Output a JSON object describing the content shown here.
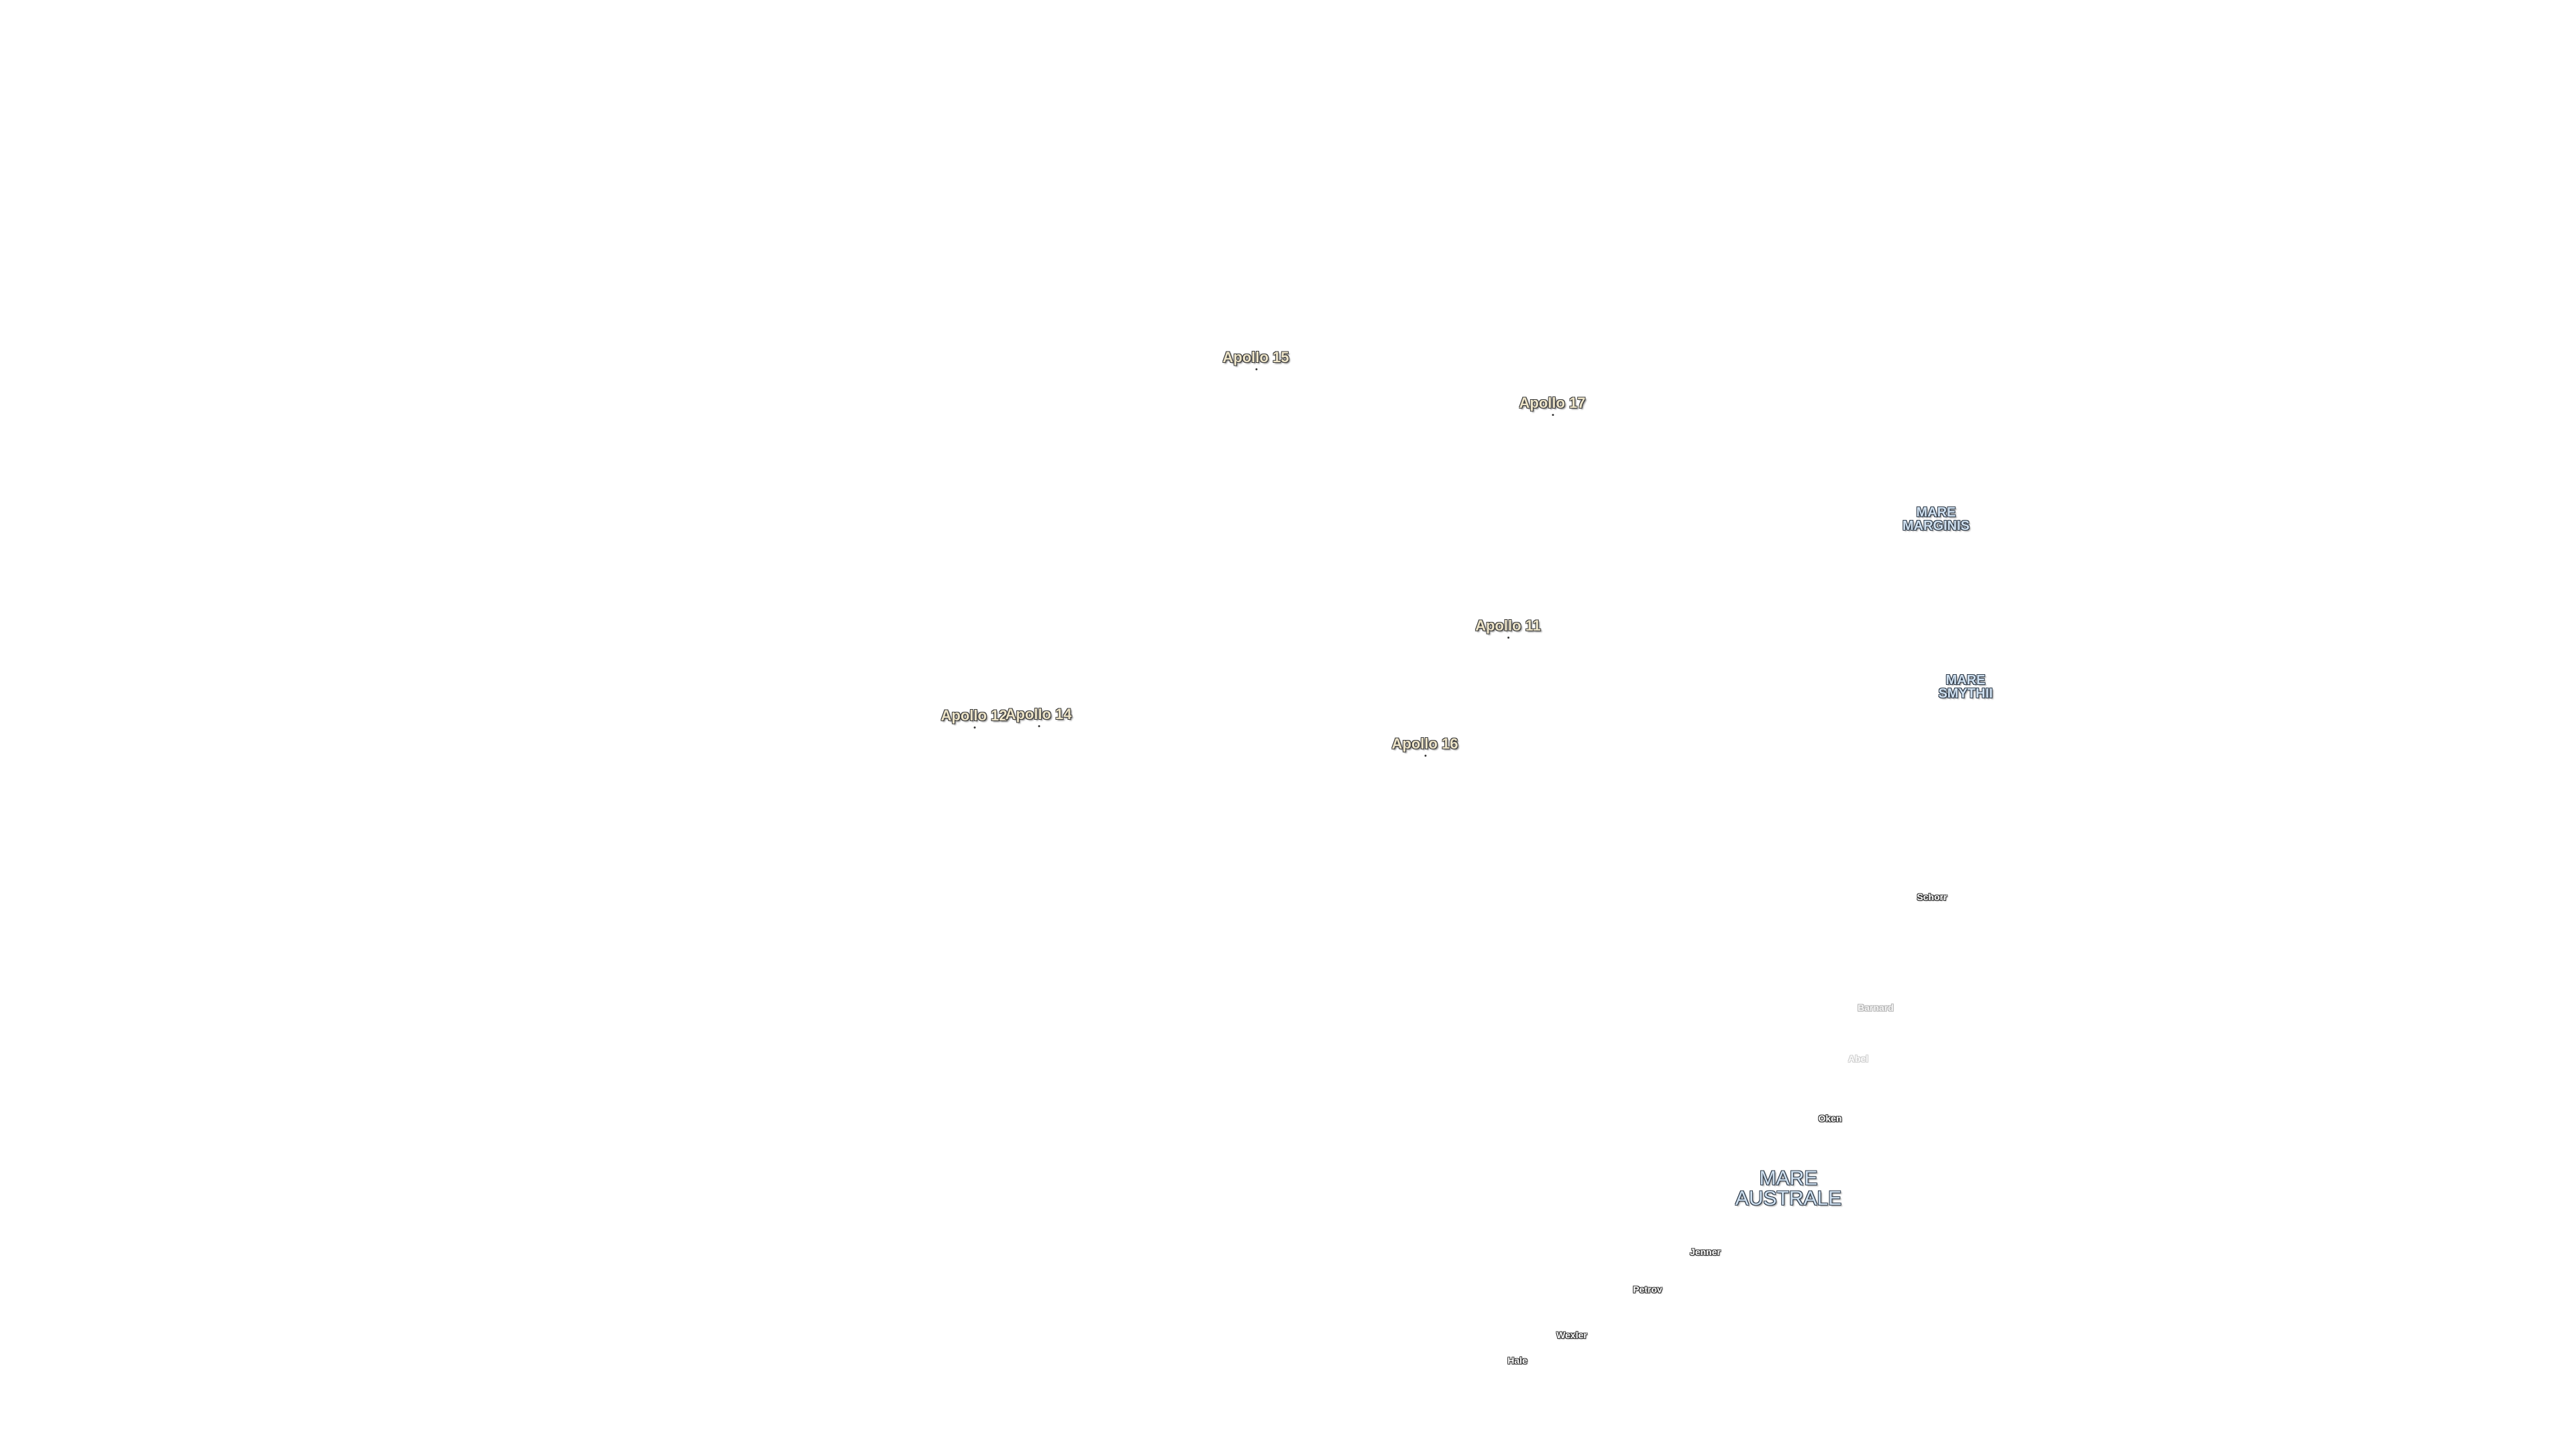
{
  "map": {
    "apollo_sites": [
      {
        "label": "Apollo 15"
      },
      {
        "label": "Apollo 17"
      },
      {
        "label": "Apollo 11"
      },
      {
        "label": "Apollo 12"
      },
      {
        "label": "Apollo 14"
      },
      {
        "label": "Apollo 16"
      }
    ],
    "maria": [
      {
        "line1": "MARE",
        "line2": "MARGINIS"
      },
      {
        "line1": "MARE",
        "line2": "SMYTHII"
      },
      {
        "line1": "MARE",
        "line2": "AUSTRALE"
      }
    ],
    "craters": [
      {
        "label": "Schorr"
      },
      {
        "label": "Barnard"
      },
      {
        "label": "Abel"
      },
      {
        "label": "Oken"
      },
      {
        "label": "Jenner"
      },
      {
        "label": "Petrov"
      },
      {
        "label": "Wexler"
      },
      {
        "label": "Hale"
      }
    ]
  }
}
